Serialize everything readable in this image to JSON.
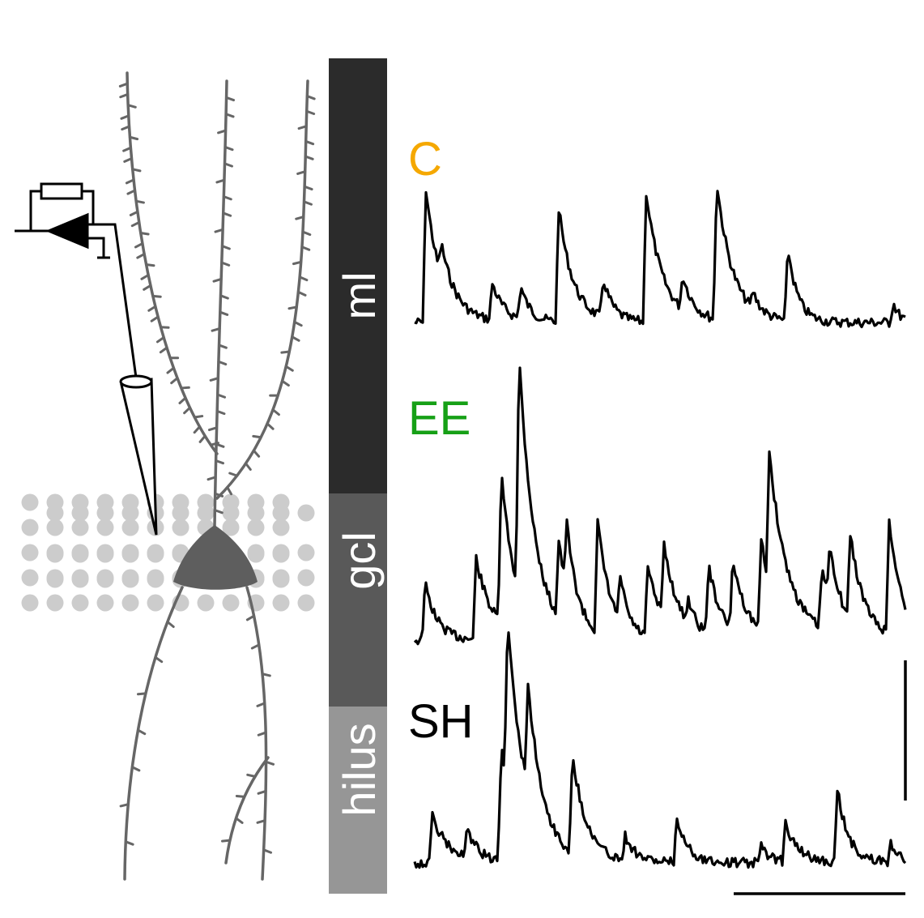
{
  "layers": [
    {
      "id": "ml",
      "label": "ml",
      "color": "#2b2b2b"
    },
    {
      "id": "gcl",
      "label": "gcl",
      "color": "#595959"
    },
    {
      "id": "hilus",
      "label": "hilus",
      "color": "#969696"
    }
  ],
  "traces": [
    {
      "id": "C",
      "label": "C",
      "color": "#f5a800"
    },
    {
      "id": "EE",
      "label": "EE",
      "color": "#16a016"
    },
    {
      "id": "SH",
      "label": "SH",
      "color": "#000000"
    }
  ],
  "colors": {
    "neuron": "#666666",
    "granule_cells": "#cccccc",
    "trace": "#000000",
    "scale_bar": "#000000"
  },
  "icons": [
    "patch-amplifier-icon",
    "recording-pipette-icon",
    "granule-cell-neuron-icon"
  ]
}
